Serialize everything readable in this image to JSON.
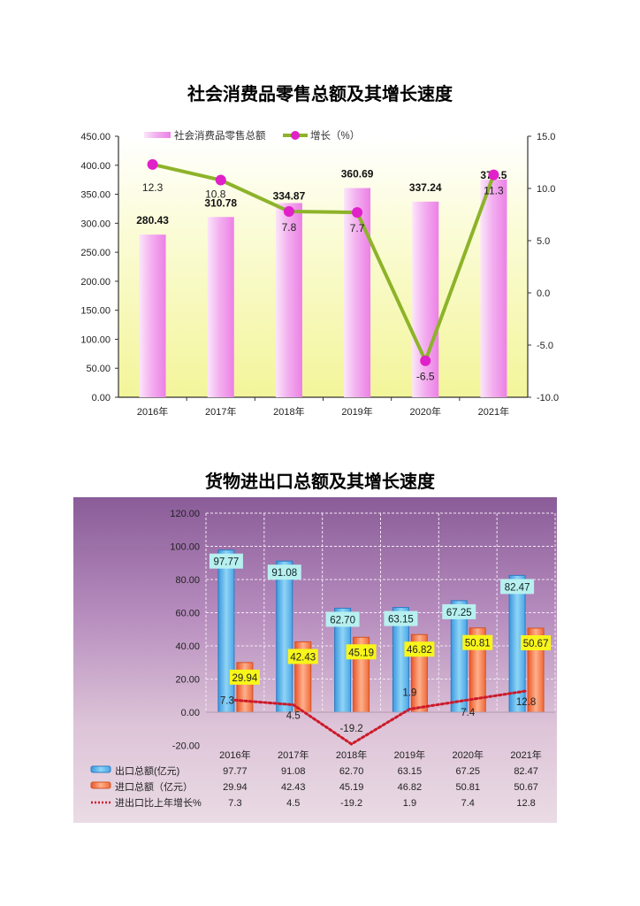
{
  "chart_data": [
    {
      "type": "bar+line",
      "title": "社会消费品零售总额及其增长速度",
      "categories": [
        "2016年",
        "2017年",
        "2018年",
        "2019年",
        "2020年",
        "2021年"
      ],
      "series": [
        {
          "name": "社会消费品零售总额",
          "type": "bar",
          "axis": "left",
          "values": [
            280.43,
            310.78,
            334.87,
            360.69,
            337.24,
            375.5
          ],
          "labels": [
            "280.43",
            "310.78",
            "334.87",
            "360.69",
            "337.24",
            "375.5"
          ],
          "color": "#ee88e8"
        },
        {
          "name": "增长（%）",
          "type": "line",
          "axis": "right",
          "values": [
            12.3,
            10.8,
            7.8,
            7.7,
            -6.5,
            11.3
          ],
          "labels": [
            "12.3",
            "10.8",
            "7.8",
            "7.7",
            "-6.5",
            "11.3"
          ],
          "color": "#8db32a",
          "marker_color": "#e020c8"
        }
      ],
      "left_axis": {
        "ylim": [
          0,
          450
        ],
        "ticks": [
          "0.00",
          "50.00",
          "100.00",
          "150.00",
          "200.00",
          "250.00",
          "300.00",
          "350.00",
          "400.00",
          "450.00"
        ]
      },
      "right_axis": {
        "ylim": [
          -10,
          15
        ],
        "ticks": [
          "-10.0",
          "-5.0",
          "0.0",
          "5.0",
          "10.0",
          "15.0"
        ]
      },
      "legend_position": "top",
      "grid": false,
      "background": "#f5f7a0"
    },
    {
      "type": "bar+line",
      "title": "货物进出口总额及其增长速度",
      "categories": [
        "2016年",
        "2017年",
        "2018年",
        "2019年",
        "2020年",
        "2021年"
      ],
      "series": [
        {
          "name": "出口总额(亿元)",
          "type": "bar",
          "values": [
            97.77,
            91.08,
            62.7,
            63.15,
            67.25,
            82.47
          ],
          "labels": [
            "97.77",
            "91.08",
            "62.70",
            "63.15",
            "67.25",
            "82.47"
          ],
          "color": "#6ec0f0"
        },
        {
          "name": "进口总额（亿元）",
          "type": "bar",
          "values": [
            29.94,
            42.43,
            45.19,
            46.82,
            50.81,
            50.67
          ],
          "labels": [
            "29.94",
            "42.43",
            "45.19",
            "46.82",
            "50.81",
            "50.67"
          ],
          "color": "#f58a5c"
        },
        {
          "name": "进出口比上年增长%",
          "type": "line",
          "style": "dotted",
          "values": [
            7.3,
            4.5,
            -19.2,
            1.9,
            7.4,
            12.8
          ],
          "labels": [
            "7.3",
            "4.5",
            "-19.2",
            "1.9",
            "7.4",
            "12.8"
          ],
          "color": "#cc1a2a"
        }
      ],
      "ylim": [
        -20,
        120
      ],
      "ticks": [
        "-20.00",
        "0.00",
        "20.00",
        "40.00",
        "60.00",
        "80.00",
        "100.00",
        "120.00"
      ],
      "grid": true,
      "data_table": true,
      "background": "#9a6ba8"
    }
  ]
}
